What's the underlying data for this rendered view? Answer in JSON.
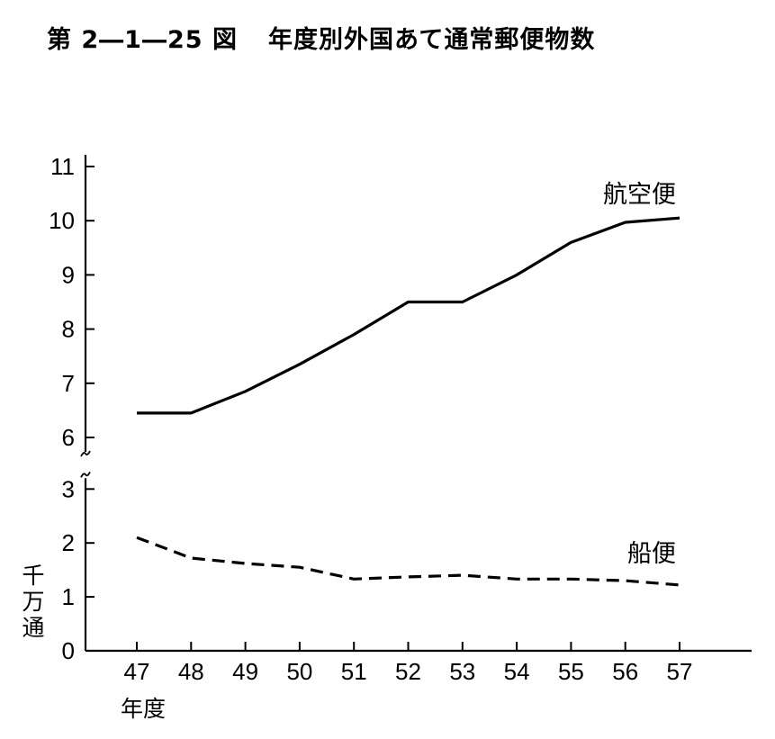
{
  "figure": {
    "number": "第 2―1―25 図",
    "title": "年度別外国あて通常郵便物数"
  },
  "chart_data": {
    "type": "line",
    "title": "年度別外国あて通常郵便物数",
    "categories": [
      "47",
      "48",
      "49",
      "50",
      "51",
      "52",
      "53",
      "54",
      "55",
      "56",
      "57"
    ],
    "xlabel": "年度",
    "ylabel": "千万通",
    "y_ticks": [
      0,
      1,
      2,
      3,
      6,
      7,
      8,
      9,
      10,
      11
    ],
    "y_axis_break": [
      3,
      6
    ],
    "ylim": [
      0,
      11
    ],
    "grid": false,
    "series": [
      {
        "name": "航空便",
        "line_style": "solid",
        "values": [
          6.45,
          6.45,
          6.85,
          7.35,
          7.9,
          8.5,
          8.5,
          9.0,
          9.6,
          9.97,
          10.05
        ]
      },
      {
        "name": "船便",
        "line_style": "dashed",
        "values": [
          2.1,
          1.72,
          1.62,
          1.55,
          1.33,
          1.37,
          1.4,
          1.33,
          1.33,
          1.3,
          1.22
        ]
      }
    ]
  }
}
